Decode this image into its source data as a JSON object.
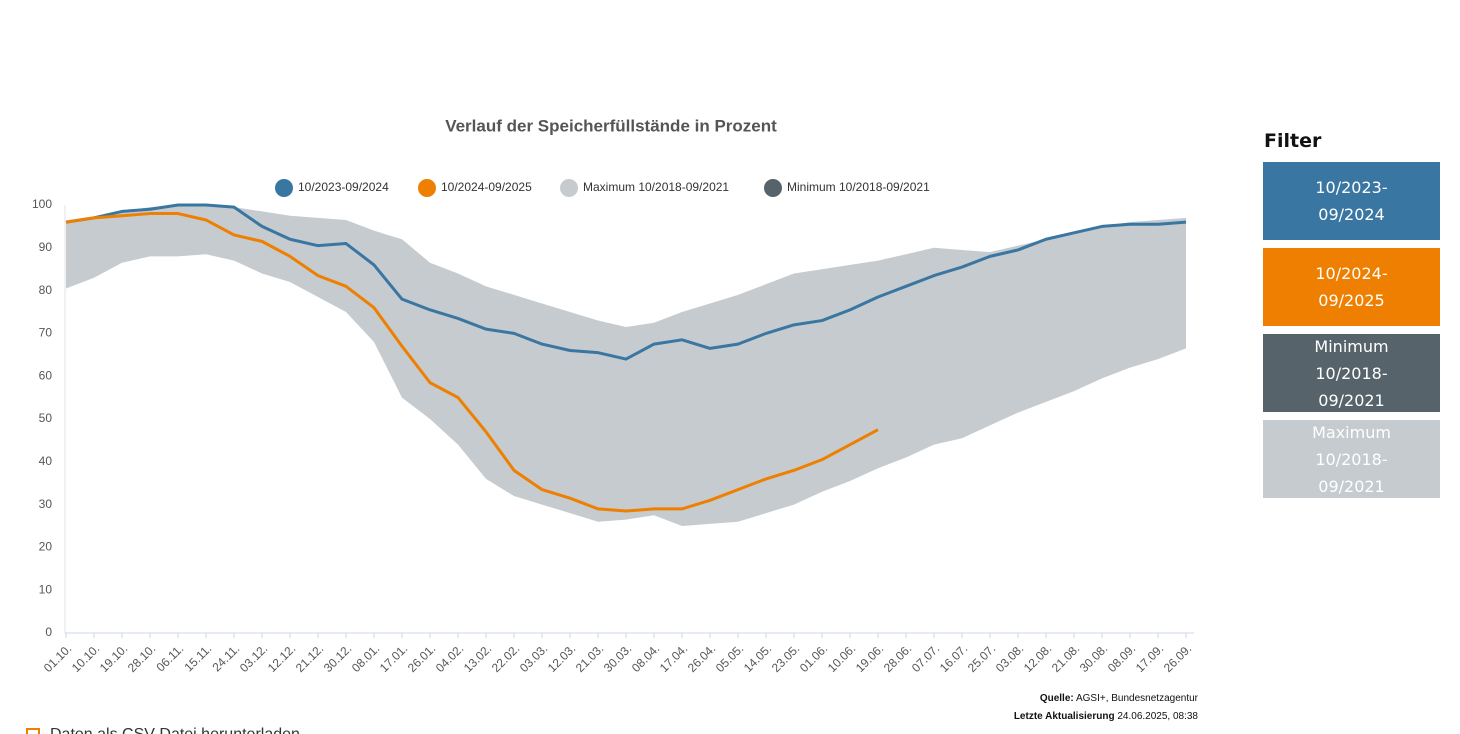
{
  "chart_data": {
    "type": "line",
    "title": "Verlauf der Speicherfüllstände in Prozent",
    "categories": [
      "01.10.",
      "10.10.",
      "19.10.",
      "28.10.",
      "06.11.",
      "15.11.",
      "24.11.",
      "03.12.",
      "12.12.",
      "21.12.",
      "30.12.",
      "08.01.",
      "17.01.",
      "26.01.",
      "04.02.",
      "13.02.",
      "22.02.",
      "03.03.",
      "12.03.",
      "21.03.",
      "30.03.",
      "08.04.",
      "17.04.",
      "26.04.",
      "05.05.",
      "14.05.",
      "23.05.",
      "01.06.",
      "10.06.",
      "19.06.",
      "28.06.",
      "07.07.",
      "16.07.",
      "25.07.",
      "03.08.",
      "12.08.",
      "21.08.",
      "30.08.",
      "08.09.",
      "17.09.",
      "26.09."
    ],
    "series": [
      {
        "name": "10/2023-09/2024",
        "color": "#3a76a2",
        "values": [
          96,
          97,
          98.5,
          99,
          100,
          100,
          99.5,
          95,
          92,
          90.5,
          91,
          86,
          78,
          75.5,
          73.5,
          71,
          70,
          67.5,
          66,
          65.5,
          64,
          67.5,
          68.5,
          66.5,
          67.5,
          70,
          72,
          73,
          75.5,
          78.5,
          81,
          83.5,
          85.5,
          88,
          89.5,
          92,
          93.5,
          95,
          95.5,
          95.5,
          96
        ]
      },
      {
        "name": "10/2024-09/2025",
        "color": "#ee7f00",
        "values": [
          96,
          97,
          97.5,
          98,
          98,
          96.5,
          93,
          91.5,
          88,
          83.5,
          81,
          76,
          67,
          58.5,
          55,
          47,
          38,
          33.5,
          31.5,
          29,
          28.5,
          29,
          29,
          31,
          33.5,
          36,
          38,
          40.5,
          44,
          47.5,
          null,
          null,
          null,
          null,
          null,
          null,
          null,
          null,
          null,
          null,
          null
        ]
      },
      {
        "name": "Maximum 10/2018-09/2021",
        "color": "#c5cbcf",
        "values": [
          96,
          97,
          98.5,
          99.5,
          100,
          100,
          99.5,
          98.5,
          97.5,
          97,
          96.5,
          94,
          92,
          86.5,
          84,
          81,
          79,
          77,
          75,
          73,
          71.5,
          72.5,
          75,
          77,
          79,
          81.5,
          84,
          85,
          86,
          87,
          88.5,
          90,
          89.5,
          89,
          90.5,
          92,
          93.5,
          95,
          96,
          96.5,
          97
        ]
      },
      {
        "name": "Minimum 10/2018-09/2021",
        "color": "#56636b",
        "values": [
          80.5,
          83,
          86.5,
          88,
          88,
          88.5,
          87,
          84,
          82,
          78.5,
          75,
          68,
          55,
          50,
          44,
          36,
          32,
          30,
          28,
          26,
          26.5,
          27.5,
          25,
          25.5,
          26,
          28,
          30,
          33,
          35.5,
          38.5,
          41,
          44,
          45.5,
          48.5,
          51.5,
          54,
          56.5,
          59.5,
          62,
          64,
          66.5
        ]
      }
    ],
    "ylim": [
      0,
      100
    ],
    "yticks": [
      0,
      10,
      20,
      30,
      40,
      50,
      60,
      70,
      80,
      90,
      100
    ],
    "grid": false
  },
  "filter": {
    "title": "Filter",
    "buttons": [
      "10/2023-09/2024",
      "10/2024-09/2025",
      "Minimum 10/2018-09/2021",
      "Maximum 10/2018-09/2021"
    ]
  },
  "source": {
    "label": "Quelle:",
    "text": "AGSI+, Bundesnetzagentur",
    "update_label": "Letzte Aktualisierung",
    "update_text": "24.06.2025, 08:38"
  },
  "download": "Daten als CSV-Datei herunterladen"
}
